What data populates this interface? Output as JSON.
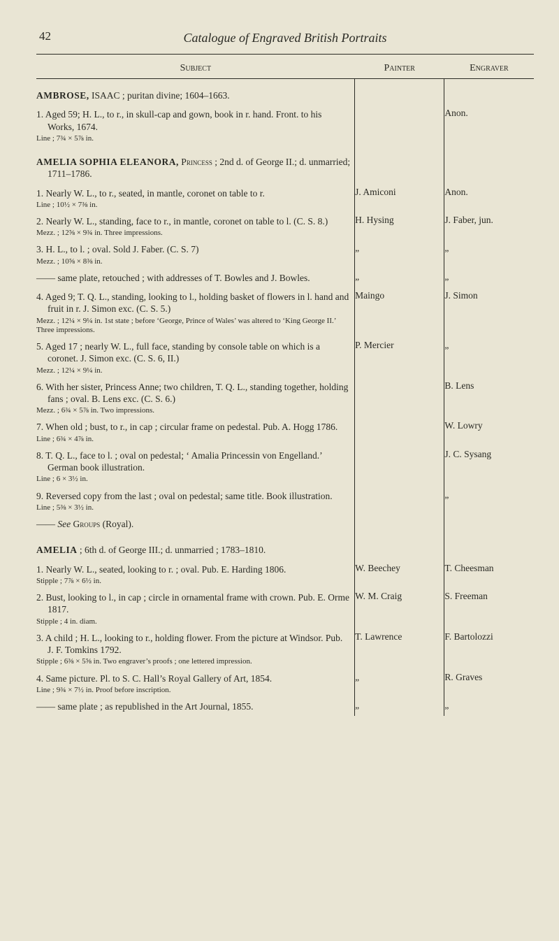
{
  "page_number": "42",
  "running_head": "Catalogue of Engraved British Portraits",
  "columns": {
    "subject": "Subject",
    "painter": "Painter",
    "engraver": "Engraver"
  },
  "ambrose": {
    "heading": "AMBROSE, ISAAC ; puritan divine; 1604–1663.",
    "e1": {
      "t": "1. Aged 59; H. L., to r., in skull-cap and gown, book in r. hand. Front. to his Works, 1674.",
      "n": "Line ; 7¾ × 5⅞ in.",
      "eng": "Anon."
    }
  },
  "amelia_sophia": {
    "heading": "AMELIA SOPHIA ELEANORA, Princess ; 2nd d. of George II.; d. unmarried; 1711–1786.",
    "e1": {
      "t": "1. Nearly W. L., to r., seated, in mantle, coronet on table to r.",
      "n": "Line ; 10½ × 7⅜ in.",
      "p": "J. Amiconi",
      "eng": "Anon."
    },
    "e2": {
      "t": "2. Nearly W. L., standing, face to r., in mantle, coronet on table to l. (C. S. 8.)",
      "n": "Mezz. ; 12⅝ × 9¾ in.\nThree impressions.",
      "p": "H. Hysing",
      "eng": "J. Faber, jun."
    },
    "e3": {
      "t": "3. H. L., to l. ; oval. Sold J. Faber. (C. S. 7)",
      "n": "Mezz. ; 10⅝ × 8⅜ in.",
      "p": "„",
      "eng": "„"
    },
    "e3a": {
      "t": "—— same plate, retouched ; with addresses of T. Bowles and J. Bowles.",
      "p": "„",
      "eng": "„"
    },
    "e4": {
      "t": "4. Aged 9; T. Q. L., standing, looking to l., holding basket of flowers in l. hand and fruit in r. J. Simon exc. (C. S. 5.)",
      "n": "Mezz. ; 12¼ × 9¼ in.\n1st state ; before ‘George, Prince of Wales’ was altered to ‘King George II.’\nThree impressions.",
      "p": "Maingo",
      "eng": "J. Simon"
    },
    "e5": {
      "t": "5. Aged 17 ; nearly W. L., full face, standing by console table on which is a coronet. J. Simon exc. (C. S. 6, II.)",
      "n": "Mezz. ; 12¼ × 9¼ in.",
      "p": "P. Mercier",
      "eng": "„"
    },
    "e6": {
      "t": "6. With her sister, Princess Anne; two children, T. Q. L., standing together, holding fans ; oval. B. Lens exc. (C. S. 6.)",
      "n": "Mezz. ; 6¾ × 5⅞ in.\nTwo impressions.",
      "eng": "B. Lens"
    },
    "e7": {
      "t": "7. When old ; bust, to r., in cap ; circular frame on pedestal. Pub. A. Hogg 1786.",
      "n": "Line ; 6¾ × 4⅞ in.",
      "eng": "W. Lowry"
    },
    "e8": {
      "t": "8. T. Q. L., face to l. ; oval on pedestal; ‘ Amalia Princessin von Engelland.’ German book illustration.",
      "n": "Line ; 6 × 3½ in.",
      "eng": "J. C. Sysang"
    },
    "e9": {
      "t": "9. Reversed copy from the last ; oval on pedestal; same title. Book illustration.",
      "n": "Line ; 5⅜ × 3½ in.",
      "eng": "„"
    },
    "see": "—— See Groups (Royal)."
  },
  "amelia": {
    "heading": "AMELIA ; 6th d. of George III.; d. unmarried ; 1783–1810.",
    "e1": {
      "t": "1. Nearly W. L., seated, looking to r. ; oval. Pub. E. Harding 1806.",
      "n": "Stipple ; 7⅞ × 6½ in.",
      "p": "W. Beechey",
      "eng": "T. Cheesman"
    },
    "e2": {
      "t": "2. Bust, looking to l., in cap ; circle in ornamental frame with crown. Pub. E. Orme 1817.",
      "n": "Stipple ; 4 in. diam.",
      "p": "W. M. Craig",
      "eng": "S. Freeman"
    },
    "e3": {
      "t": "3. A child ; H. L., looking to r., holding flower. From the picture at Windsor. Pub. J. F. Tomkins 1792.",
      "n": "Stipple ; 6⅜ × 5⅝ in.\nTwo engraver’s proofs ; one lettered impression.",
      "p": "T. Lawrence",
      "eng": "F. Bartolozzi"
    },
    "e4": {
      "t": "4. Same picture. Pl. to S. C. Hall’s Royal Gallery of Art, 1854.",
      "n": "Line ; 9¾ × 7½ in.\nProof before inscription.",
      "p": "„",
      "eng": "R. Graves"
    },
    "e4a": {
      "t": "—— same plate ; as republished in the Art Journal, 1855.",
      "p": "„",
      "eng": "„"
    }
  }
}
